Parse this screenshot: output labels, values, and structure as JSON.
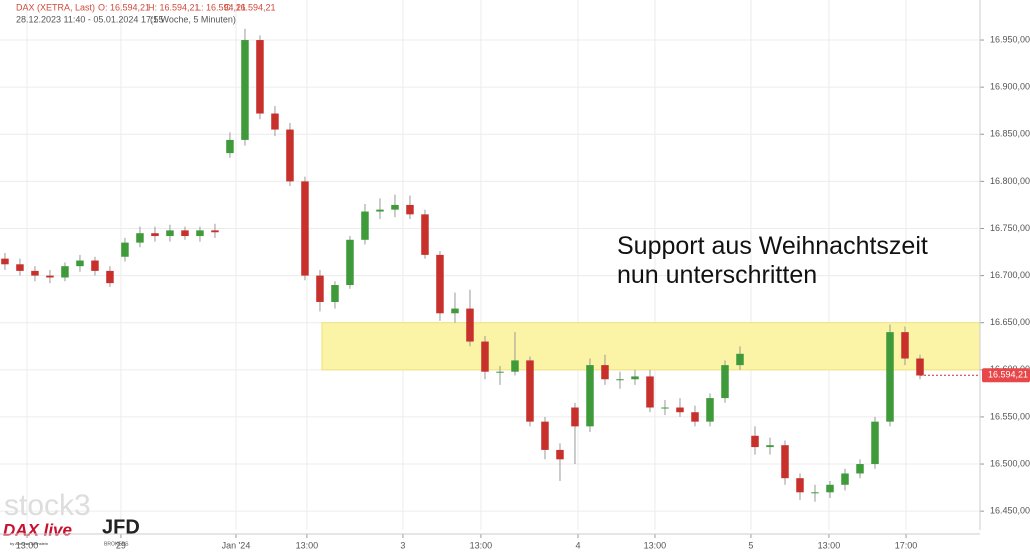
{
  "chart_data": {
    "type": "candlestick",
    "header": {
      "symbol": "DAX (XETRA, Last)",
      "open": "O: 16.594,21",
      "high": "H: 16.594,21",
      "low": "L: 16.594,21",
      "close": "C: 16.594,21",
      "range": "28.12.2023 11:40 - 05.01.2024 17:55",
      "interval": "(1 Woche, 5 Minuten)"
    },
    "annotation": "Support aus Weihnachtszeit nun unterschritten",
    "last_price": {
      "value": 16594.21,
      "label": "16.594,21"
    },
    "zone": {
      "from": 16600,
      "to": 16650,
      "start": 21.13
    },
    "logos": {
      "brand": "stock3",
      "show": "DAX live",
      "show_sub": "by Andreas Bernstein",
      "broker": "JFD",
      "broker_sub": "BROKERS"
    },
    "up_color": "#3f9a3a",
    "down_color": "#c8302c",
    "zone_color": "#fbf3a6",
    "categories": [
      null,
      null,
      null,
      null,
      null,
      null,
      null,
      null,
      null,
      null,
      null,
      null,
      null,
      null,
      null,
      null,
      null,
      null,
      null,
      null,
      null,
      null,
      null,
      null,
      null,
      null,
      null,
      null,
      null,
      null,
      null,
      null,
      null,
      null,
      null,
      null,
      null,
      null,
      null,
      null,
      null,
      null,
      null,
      null,
      null,
      null,
      null,
      null,
      null,
      null,
      null,
      null,
      null,
      null,
      null,
      null,
      null,
      null,
      null,
      null,
      null,
      null
    ],
    "open": [
      16718,
      16712,
      16705,
      16700,
      16698,
      16710,
      16716,
      16705,
      16720,
      16735,
      16745,
      16742,
      16748,
      16742,
      16748,
      16830,
      16844,
      16950,
      16872,
      16855,
      16800,
      16700,
      16672,
      16690,
      16738,
      16768,
      16770,
      16775,
      16765,
      16722,
      16660,
      16665,
      16630,
      16598,
      16598,
      16610,
      16545,
      16515,
      16560,
      16540,
      16605,
      16590,
      16590,
      16593,
      16560,
      16560,
      16555,
      16545,
      16570,
      16605,
      16530,
      16518,
      16520,
      16485,
      16470,
      16470,
      16478,
      16490,
      16500,
      16545,
      16640,
      16612
    ],
    "high": [
      16724,
      16718,
      16710,
      16706,
      16714,
      16722,
      16720,
      16710,
      16740,
      16752,
      16752,
      16754,
      16752,
      16752,
      16755,
      16852,
      16962,
      16955,
      16880,
      16862,
      16805,
      16706,
      16694,
      16742,
      16776,
      16782,
      16786,
      16785,
      16770,
      16726,
      16682,
      16685,
      16636,
      16604,
      16640,
      16614,
      16550,
      16522,
      16565,
      16612,
      16616,
      16598,
      16600,
      16600,
      16568,
      16570,
      16562,
      16575,
      16610,
      16625,
      16540,
      16528,
      16525,
      16490,
      16478,
      16482,
      16495,
      16505,
      16550,
      16648,
      16646,
      16616
    ],
    "low": [
      16706,
      16700,
      16694,
      16692,
      16694,
      16704,
      16700,
      16688,
      16715,
      16730,
      16736,
      16736,
      16738,
      16736,
      16740,
      16825,
      16838,
      16866,
      16848,
      16795,
      16695,
      16662,
      16665,
      16686,
      16733,
      16760,
      16762,
      16760,
      16718,
      16652,
      16650,
      16625,
      16590,
      16584,
      16594,
      16540,
      16505,
      16482,
      16500,
      16534,
      16584,
      16580,
      16584,
      16555,
      16552,
      16550,
      16540,
      16540,
      16565,
      16600,
      16510,
      16510,
      16478,
      16462,
      16460,
      16464,
      16472,
      16485,
      16495,
      16540,
      16605,
      16590
    ],
    "close": [
      16712,
      16705,
      16700,
      16698,
      16710,
      16716,
      16705,
      16692,
      16735,
      16745,
      16742,
      16748,
      16742,
      16748,
      16746,
      16844,
      16950,
      16872,
      16855,
      16800,
      16700,
      16672,
      16690,
      16738,
      16768,
      16770,
      16775,
      16765,
      16722,
      16660,
      16665,
      16630,
      16598,
      16598,
      16610,
      16545,
      16515,
      16505,
      16540,
      16605,
      16590,
      16590,
      16593,
      16560,
      16560,
      16555,
      16545,
      16570,
      16605,
      16617,
      16518,
      16520,
      16485,
      16470,
      16470,
      16478,
      16490,
      16500,
      16545,
      16640,
      16612,
      16594
    ],
    "xlim": [
      -0.33,
      65
    ],
    "xticks": [
      {
        "value": 1.47,
        "label": "13:00"
      },
      {
        "value": 7.73,
        "label": "29"
      },
      {
        "value": 15.4,
        "label": "Jan '24"
      },
      {
        "value": 20.13,
        "label": "13:00"
      },
      {
        "value": 26.53,
        "label": "3"
      },
      {
        "value": 31.73,
        "label": "13:00"
      },
      {
        "value": 38.2,
        "label": "4"
      },
      {
        "value": 43.33,
        "label": "13:00"
      },
      {
        "value": 49.73,
        "label": "5"
      },
      {
        "value": 54.93,
        "label": "13:00"
      },
      {
        "value": 60.07,
        "label": "17:00"
      }
    ],
    "ylim": [
      16430,
      16992.5
    ],
    "yticks": [
      {
        "value": 16450,
        "label": "16.450,00"
      },
      {
        "value": 16500,
        "label": "16.500,00"
      },
      {
        "value": 16550,
        "label": "16.550,00"
      },
      {
        "value": 16600,
        "label": "16.600,00"
      },
      {
        "value": 16650,
        "label": "16.650,00"
      },
      {
        "value": 16700,
        "label": "16.700,00"
      },
      {
        "value": 16750,
        "label": "16.750,00"
      },
      {
        "value": 16800,
        "label": "16.800,00"
      },
      {
        "value": 16850,
        "label": "16.850,00"
      },
      {
        "value": 16900,
        "label": "16.900,00"
      },
      {
        "value": 16950,
        "label": "16.950,00"
      }
    ],
    "grid": true
  }
}
